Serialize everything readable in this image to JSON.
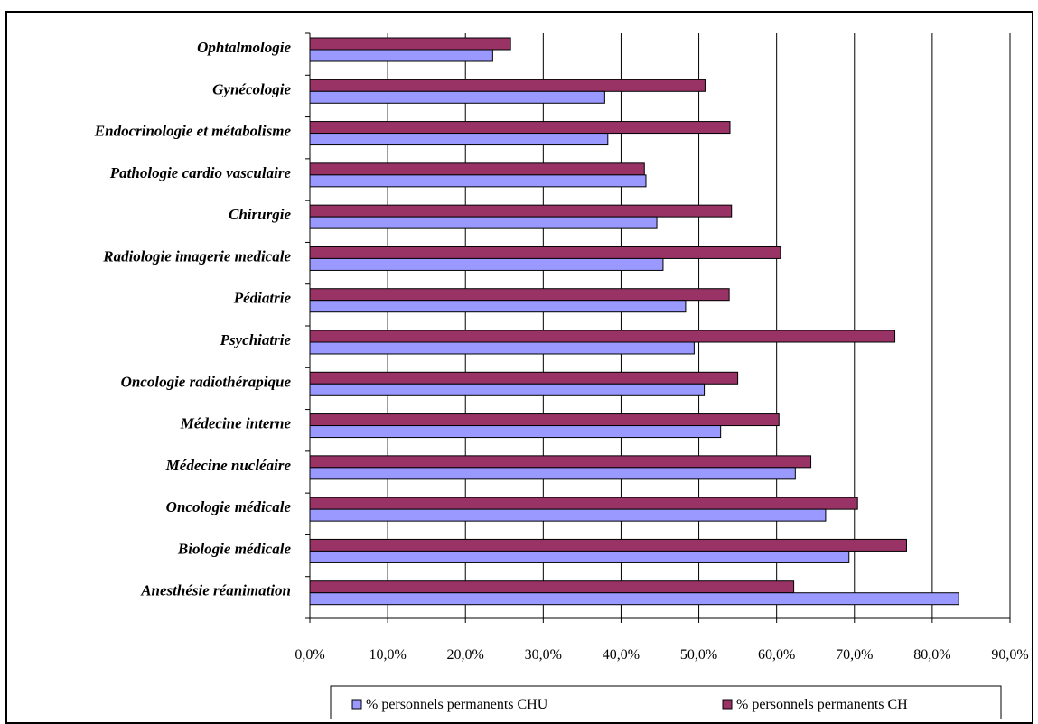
{
  "chart_data": {
    "type": "bar",
    "orientation": "horizontal",
    "categories": [
      "Ophtalmologie",
      "Gynécologie",
      "Endocrinologie et métabolisme",
      "Pathologie cardio vasculaire",
      "Chirurgie",
      "Radiologie imagerie medicale",
      "Pédiatrie",
      "Psychiatrie",
      "Oncologie radiothérapique",
      "Médecine interne",
      "Médecine nucléaire",
      "Oncologie médicale",
      "Biologie médicale",
      "Anesthésie réanimation"
    ],
    "series": [
      {
        "name": "% personnels permanents CHU",
        "color": "#9999FF",
        "values": [
          23.5,
          37.9,
          38.3,
          43.2,
          44.6,
          45.4,
          48.3,
          49.4,
          50.7,
          52.8,
          62.4,
          66.3,
          69.3,
          83.4
        ]
      },
      {
        "name": "% personnels permanents CH",
        "color": "#993366",
        "values": [
          25.8,
          50.8,
          54.0,
          43.0,
          54.2,
          60.5,
          53.9,
          75.2,
          55.0,
          60.3,
          64.4,
          70.4,
          76.7,
          62.2
        ]
      }
    ],
    "xlim": [
      0,
      90
    ],
    "xticks": [
      "0,0%",
      "10,0%",
      "20,0%",
      "30,0%",
      "40,0%",
      "50,0%",
      "60,0%",
      "70,0%",
      "80,0%",
      "90,0%"
    ],
    "grid": true,
    "legend_position": "bottom"
  }
}
